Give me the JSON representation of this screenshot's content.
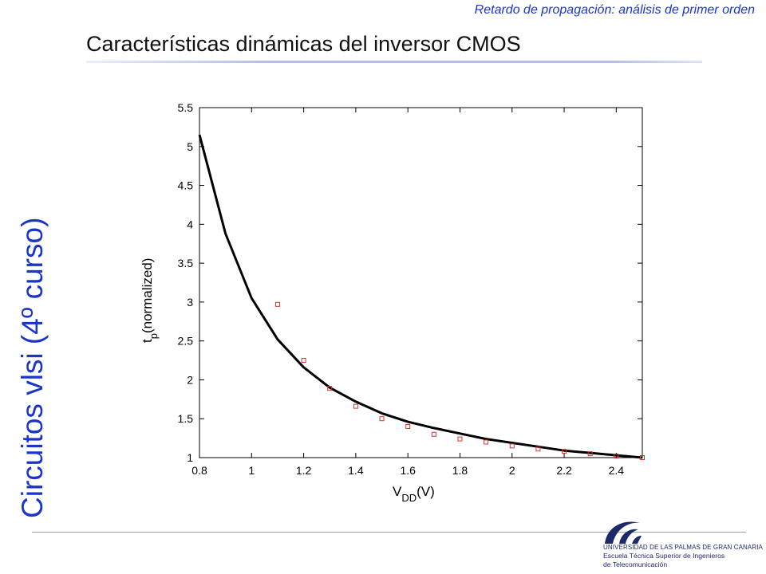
{
  "slide": {
    "header_subtitle": "Retardo de propagación: análisis de primer orden",
    "title": "Características dinámicas del inversor CMOS",
    "side_title": "Circuitos vlsi (4º curso)"
  },
  "footer": {
    "university": "UNIVERSIDAD DE LAS PALMAS DE GRAN CANARIA",
    "school_line1": "Escuela Técnica Superior de Ingenieros",
    "school_line2": "de Telecomunicación"
  },
  "colors": {
    "accent_blue": "#1a35c8",
    "line": "#000000",
    "marker": "#d8332e",
    "logo_navy": "#1c2a6b"
  },
  "chart_data": {
    "type": "line",
    "xlabel_main": "V",
    "xlabel_sub": "DD",
    "xlabel_unit": "(V)",
    "ylabel_main": "t",
    "ylabel_sub": "p",
    "ylabel_unit": "(normalized)",
    "xlim": [
      0.8,
      2.5
    ],
    "ylim": [
      1,
      5.5
    ],
    "xticks": [
      0.8,
      1,
      1.2,
      1.4,
      1.6,
      1.8,
      2,
      2.2,
      2.4
    ],
    "yticks": [
      1,
      1.5,
      2,
      2.5,
      3,
      3.5,
      4,
      4.5,
      5,
      5.5
    ],
    "grid": false,
    "legend": "none",
    "series": [
      {
        "kind": "line",
        "x": [
          0.8,
          0.9,
          1.0,
          1.1,
          1.2,
          1.3,
          1.4,
          1.5,
          1.6,
          1.7,
          1.8,
          1.9,
          2.0,
          2.1,
          2.2,
          2.3,
          2.4,
          2.5
        ],
        "y": [
          5.15,
          3.88,
          3.05,
          2.52,
          2.16,
          1.9,
          1.72,
          1.57,
          1.46,
          1.38,
          1.31,
          1.24,
          1.19,
          1.14,
          1.09,
          1.06,
          1.03,
          1.0
        ]
      },
      {
        "kind": "markers",
        "x": [
          1.1,
          1.2,
          1.3,
          1.4,
          1.5,
          1.6,
          1.7,
          1.8,
          1.9,
          2.0,
          2.1,
          2.2,
          2.3,
          2.4,
          2.5
        ],
        "y": [
          2.97,
          2.25,
          1.89,
          1.66,
          1.5,
          1.4,
          1.3,
          1.24,
          1.2,
          1.15,
          1.11,
          1.08,
          1.05,
          1.02,
          1.0
        ]
      }
    ]
  }
}
